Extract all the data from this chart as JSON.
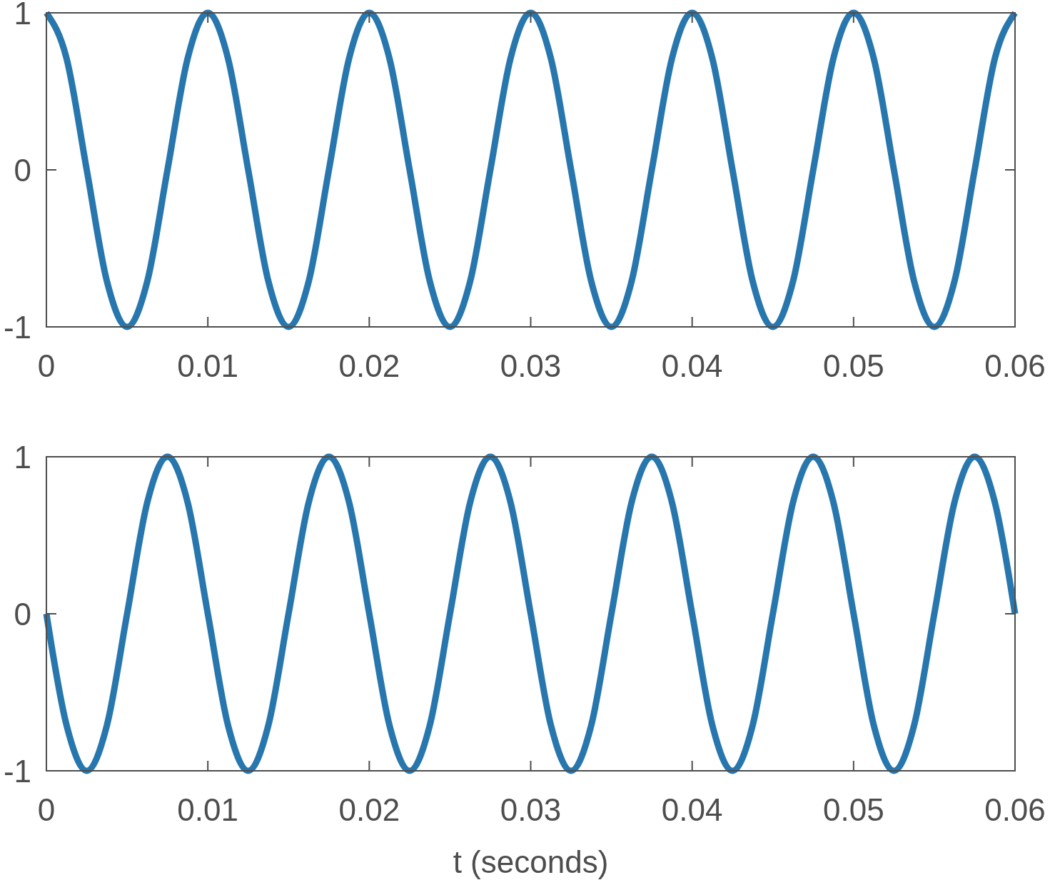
{
  "chart_data": [
    {
      "type": "line",
      "x": [
        0,
        0.00125,
        0.0025,
        0.00375,
        0.005,
        0.00625,
        0.0075,
        0.00875,
        0.01,
        0.01125,
        0.0125,
        0.01375,
        0.015,
        0.01625,
        0.0175,
        0.01875,
        0.02,
        0.02125,
        0.0225,
        0.02375,
        0.025,
        0.02625,
        0.0275,
        0.02875,
        0.03,
        0.03125,
        0.0325,
        0.03375,
        0.035,
        0.03625,
        0.0375,
        0.03875,
        0.04,
        0.04125,
        0.0425,
        0.04375,
        0.045,
        0.04625,
        0.0475,
        0.04875,
        0.05,
        0.05125,
        0.0525,
        0.05375,
        0.055,
        0.05625,
        0.0575,
        0.05875,
        0.06
      ],
      "series": [
        {
          "color": "#2777ae",
          "values": [
            1,
            0.71,
            0,
            -0.71,
            -1,
            -0.71,
            0,
            0.71,
            1,
            0.71,
            0,
            -0.71,
            -1,
            -0.71,
            0,
            0.71,
            1,
            0.71,
            0,
            -0.71,
            -1,
            -0.71,
            0,
            0.71,
            1,
            0.71,
            0,
            -0.71,
            -1,
            -0.71,
            0,
            0.71,
            1,
            0.71,
            0,
            -0.71,
            -1,
            -0.71,
            0,
            0.71,
            1,
            0.71,
            0,
            -0.71,
            -1,
            -0.71,
            0,
            0.71,
            1
          ]
        }
      ],
      "xlim": [
        0,
        0.06
      ],
      "xticks": [
        0,
        0.01,
        0.02,
        0.03,
        0.04,
        0.05,
        0.06
      ],
      "ylim": [
        -1,
        1
      ],
      "yticks": [
        -1,
        0,
        1
      ],
      "grid": false,
      "marker": "none",
      "line_style": "solid"
    },
    {
      "type": "line",
      "xlabel": "t (seconds)",
      "x": [
        0,
        0.00125,
        0.0025,
        0.00375,
        0.005,
        0.00625,
        0.0075,
        0.00875,
        0.01,
        0.01125,
        0.0125,
        0.01375,
        0.015,
        0.01625,
        0.0175,
        0.01875,
        0.02,
        0.02125,
        0.0225,
        0.02375,
        0.025,
        0.02625,
        0.0275,
        0.02875,
        0.03,
        0.03125,
        0.0325,
        0.03375,
        0.035,
        0.03625,
        0.0375,
        0.03875,
        0.04,
        0.04125,
        0.0425,
        0.04375,
        0.045,
        0.04625,
        0.0475,
        0.04875,
        0.05,
        0.05125,
        0.0525,
        0.05375,
        0.055,
        0.05625,
        0.0575,
        0.05875,
        0.06
      ],
      "series": [
        {
          "color": "#2777ae",
          "values": [
            0,
            -0.71,
            -1,
            -0.71,
            0,
            0.71,
            1,
            0.71,
            0,
            -0.71,
            -1,
            -0.71,
            0,
            0.71,
            1,
            0.71,
            0,
            -0.71,
            -1,
            -0.71,
            0,
            0.71,
            1,
            0.71,
            0,
            -0.71,
            -1,
            -0.71,
            0,
            0.71,
            1,
            0.71,
            0,
            -0.71,
            -1,
            -0.71,
            0,
            0.71,
            1,
            0.71,
            0,
            -0.71,
            -1,
            -0.71,
            0,
            0.71,
            1,
            0.71,
            0
          ]
        }
      ],
      "xlim": [
        0,
        0.06
      ],
      "xticks": [
        0,
        0.01,
        0.02,
        0.03,
        0.04,
        0.05,
        0.06
      ],
      "ylim": [
        -1,
        1
      ],
      "yticks": [
        -1,
        0,
        1
      ],
      "grid": false,
      "marker": "none",
      "line_style": "solid"
    }
  ]
}
